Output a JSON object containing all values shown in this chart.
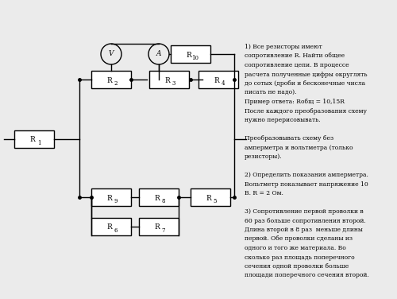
{
  "background_color": "#ebebeb",
  "text_color": "#000000",
  "line_color": "#000000",
  "text_block": [
    "1) Все резисторы имеют",
    "сопротивление R. Найти общее",
    "сопротивление цепи. В процессе",
    "расчета полученные цифры округлять",
    "до сотых (дроби и бесконечные числа",
    "писать не надо).",
    "Пример ответа: Rобщ = 10,15R",
    "После каждого преобразования схему",
    "нужно перерисовывать.",
    "",
    "Преобразовывать схему без",
    "амперметра и вольтметра (только",
    "резисторы).",
    "",
    "2) Определить показания амперметра.",
    "Вольтметр показывает напряжение 10",
    "В. R = 2 Ом.",
    "",
    "3) Сопротивление первой проволки в",
    "60 раз больше сопротивления второй.",
    "Длина второй в 8 раз  меньше длины",
    "первой. Обе проволки сделаны из",
    "одного и того же материала. Во",
    "сколько раз площадь поперечного",
    "сечения одной проволки больше",
    "площади поперечного сечения второй."
  ]
}
